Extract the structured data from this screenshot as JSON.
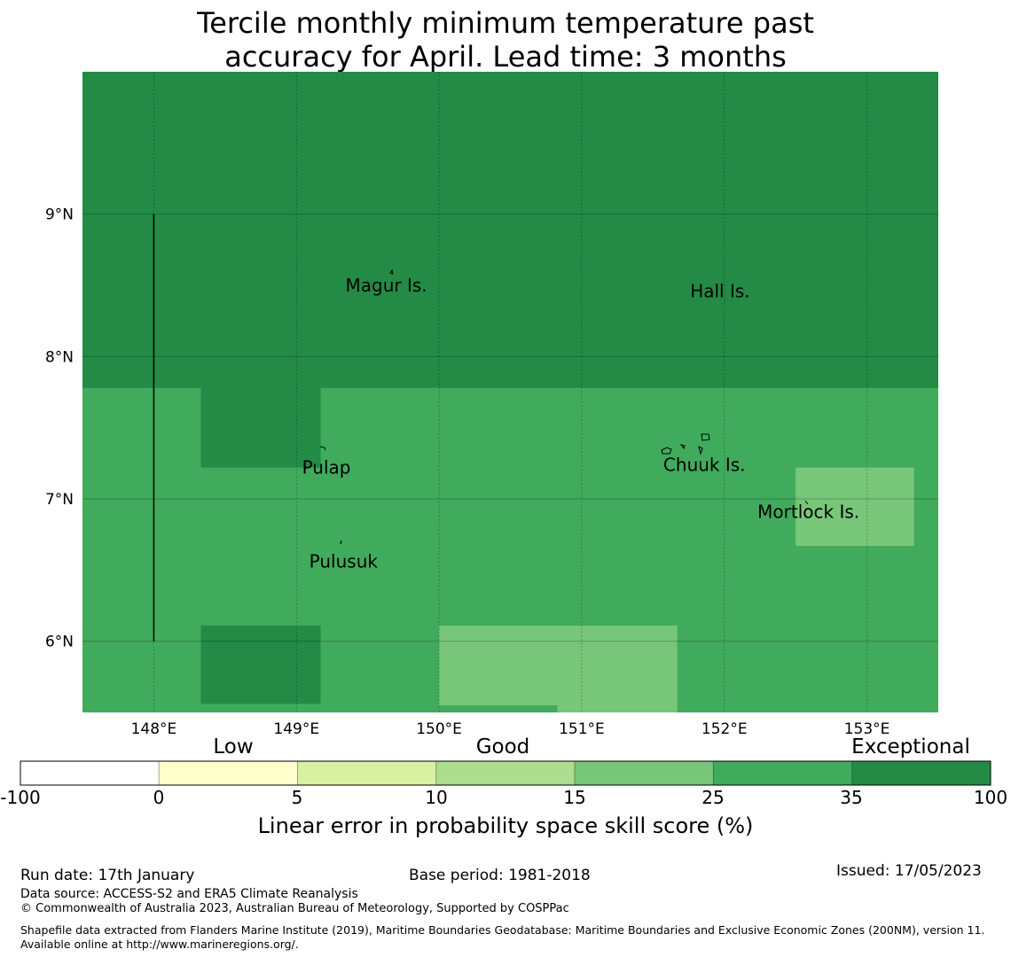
{
  "title_line1": "Tercile monthly minimum temperature past",
  "title_line2": "accuracy for April. Lead time: 3 months",
  "map": {
    "lon_range": [
      147.5,
      153.5
    ],
    "lat_range": [
      5.5,
      10.0
    ],
    "lon_ticks": [
      {
        "value": 148,
        "label": "148°E"
      },
      {
        "value": 149,
        "label": "149°E"
      },
      {
        "value": 150,
        "label": "150°E"
      },
      {
        "value": 151,
        "label": "151°E"
      },
      {
        "value": 152,
        "label": "152°E"
      },
      {
        "value": 153,
        "label": "153°E"
      }
    ],
    "lat_ticks": [
      {
        "value": 9,
        "label": "9°N"
      },
      {
        "value": 8,
        "label": "8°N"
      },
      {
        "value": 7,
        "label": "7°N"
      },
      {
        "value": 6,
        "label": "6°N"
      }
    ],
    "background_color": "#41ab5d",
    "regions": [
      {
        "name": "exceptional-north",
        "lon": [
          147.5,
          153.5
        ],
        "lat": [
          7.78,
          10.0
        ],
        "color": "#238b45"
      },
      {
        "name": "exceptional-pulap",
        "lon": [
          148.33,
          149.17
        ],
        "lat": [
          7.22,
          7.78
        ],
        "color": "#238b45"
      },
      {
        "name": "exceptional-southwest",
        "lon": [
          148.33,
          149.17
        ],
        "lat": [
          5.56,
          6.11
        ],
        "color": "#238b45"
      },
      {
        "name": "good-south",
        "lon": [
          150.0,
          151.67
        ],
        "lat": [
          5.5,
          6.11
        ],
        "color": "#78c679"
      },
      {
        "name": "good-mortlock",
        "lon": [
          152.5,
          153.33
        ],
        "lat": [
          6.67,
          7.22
        ],
        "color": "#78c679"
      },
      {
        "name": "exceptional-edge",
        "lon": [
          150.0,
          150.83
        ],
        "lat": [
          5.5,
          5.55
        ],
        "color": "#41ab5d"
      }
    ],
    "boundary_line": {
      "lon": 148.0,
      "lat": [
        6.0,
        9.0
      ]
    },
    "places": [
      {
        "name": "Magur Is.",
        "lon": 149.63,
        "lat": 8.5
      },
      {
        "name": "Hall Is.",
        "lon": 151.97,
        "lat": 8.46
      },
      {
        "name": "Pulap",
        "lon": 149.21,
        "lat": 7.22
      },
      {
        "name": "Chuuk Is.",
        "lon": 151.86,
        "lat": 7.24
      },
      {
        "name": "Mortlock Is.",
        "lon": 152.59,
        "lat": 6.91
      },
      {
        "name": "Pulusuk",
        "lon": 149.33,
        "lat": 6.56
      }
    ]
  },
  "colorbar": {
    "categories": [
      {
        "label": "Low",
        "x": 263
      },
      {
        "label": "Good",
        "x": 567
      },
      {
        "label": "Exceptional",
        "x": 1027
      }
    ],
    "ticks": [
      "-100",
      "0",
      "5",
      "10",
      "15",
      "25",
      "35",
      "100"
    ],
    "colors": [
      "#ffffff",
      "#ffffcc",
      "#d9f0a3",
      "#addd8e",
      "#78c679",
      "#41ab5d",
      "#238b45"
    ],
    "label": "Linear error in probability space skill score (%)"
  },
  "footer": {
    "run_date": "Run date: 17th January",
    "base_period": "Base period: 1981-2018",
    "issued": "Issued: 17/05/2023",
    "data_source": "Data source: ACCESS-S2 and ERA5 Climate Reanalysis",
    "copyright": "© Commonwealth of Australia 2023, Australian Bureau of Meteorology, Supported by COSPPac",
    "shapefile": "Shapefile data extracted from Flanders Marine Institute (2019), Maritime Boundaries Geodatabase: Maritime Boundaries and Exclusive Economic Zones (200NM), version 11. Available online at http://www.marineregions.org/."
  }
}
